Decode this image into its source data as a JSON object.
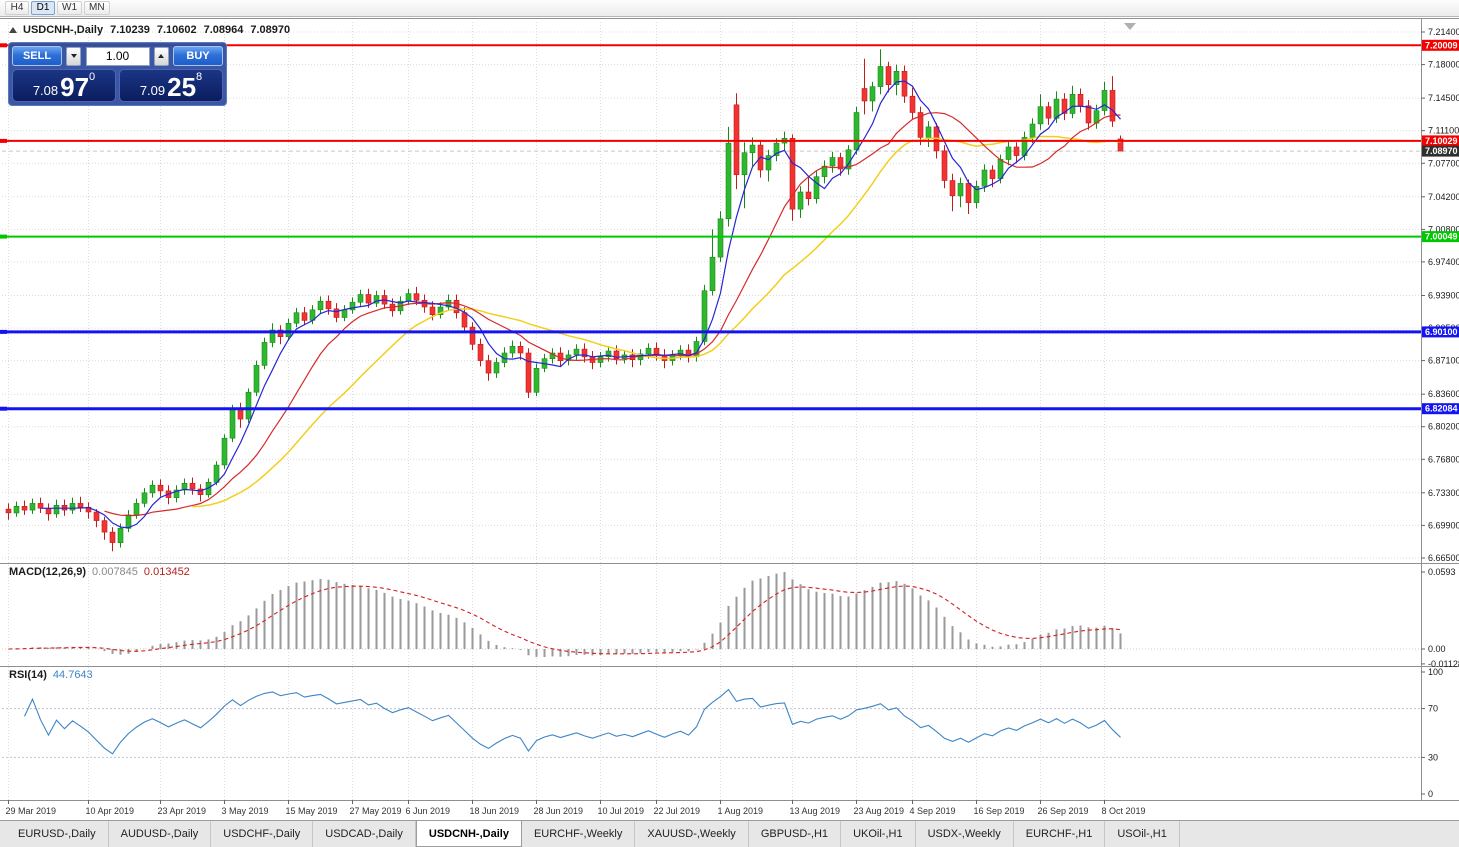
{
  "toolbar": {
    "timeframes": [
      "H4",
      "D1",
      "W1",
      "MN"
    ],
    "active": "D1"
  },
  "chart": {
    "title": {
      "symbol": "USDCNH-,Daily",
      "open": "7.10239",
      "high": "7.10602",
      "low": "7.08964",
      "close": "7.08970"
    },
    "one_click": {
      "sell_label": "SELL",
      "buy_label": "BUY",
      "volume": "1.00",
      "sell_price": {
        "base": "7.08",
        "big": "97",
        "sup": "0"
      },
      "buy_price": {
        "base": "7.09",
        "big": "25",
        "sup": "8"
      }
    }
  },
  "price_axis": {
    "ticks": [
      "7.21400",
      "7.18000",
      "7.14500",
      "7.11100",
      "7.07700",
      "7.04200",
      "7.00800",
      "6.97400",
      "6.93900",
      "6.90500",
      "6.87100",
      "6.83600",
      "6.80200",
      "6.76800",
      "6.73300",
      "6.69900",
      "6.66500"
    ]
  },
  "hlines": [
    {
      "price": 7.20009,
      "label": "7.20009",
      "color": "#f40000",
      "width": 2
    },
    {
      "price": 7.10029,
      "label": "7.10029",
      "color": "#f40000",
      "width": 2
    },
    {
      "price": 7.00049,
      "label": "7.00049",
      "color": "#00c800",
      "width": 2
    },
    {
      "price": 6.901,
      "label": "6.90100",
      "color": "#1414f0",
      "width": 3
    },
    {
      "price": 6.82084,
      "label": "6.82084",
      "color": "#1414f0",
      "width": 3
    }
  ],
  "current_price": {
    "value": 7.0897,
    "label": "7.08970",
    "badge_color": "#2f2f2f"
  },
  "macd": {
    "name": "MACD(12,26,9)",
    "fast": 12,
    "slow": 26,
    "signal": 9,
    "value_hist": "0.007845",
    "value_signal": "0.013452",
    "scale": [
      "0.0593",
      "0.00",
      "-0.01128"
    ],
    "hist_color": "#9a9a9a",
    "signal_color": "#d42020"
  },
  "rsi": {
    "name": "RSI(14)",
    "period": 14,
    "value": "44.7643",
    "scale": [
      "100",
      "70",
      "30",
      "0"
    ],
    "levels": [
      70,
      30
    ],
    "color": "#3d85c6"
  },
  "tabs": {
    "items": [
      "EURUSD-,Daily",
      "AUDUSD-,Daily",
      "USDCHF-,Daily",
      "USDCAD-,Daily",
      "USDCNH-,Daily",
      "EURCHF-,Weekly",
      "XAUUSD-,Weekly",
      "GBPUSD-,H1",
      "UKOil-,H1",
      "USDX-,Weekly",
      "EURCHF-,H1",
      "USOil-,H1"
    ],
    "active_index": 4
  },
  "chart_data": {
    "type": "candlestick",
    "symbol": "USDCNH",
    "timeframe": "Daily",
    "y_range": {
      "min": 6.665,
      "max": 7.214
    },
    "colors": {
      "bull": "#2eb82e",
      "bull_border": "#188a18",
      "bear": "#f13333",
      "bear_border": "#c41a1a"
    },
    "moving_averages": [
      {
        "period": 24,
        "color": "#f2cf1d",
        "width": 1.5
      },
      {
        "period": 13,
        "color": "#d62a2a",
        "width": 1.2
      },
      {
        "period": 5,
        "color": "#2626d4",
        "width": 1.2
      }
    ],
    "date_labels": [
      {
        "t": "29 Mar 2019",
        "i": 0
      },
      {
        "t": "10 Apr 2019",
        "i": 10
      },
      {
        "t": "23 Apr 2019",
        "i": 19
      },
      {
        "t": "3 May 2019",
        "i": 27
      },
      {
        "t": "15 May 2019",
        "i": 35
      },
      {
        "t": "27 May 2019",
        "i": 43
      },
      {
        "t": "6 Jun 2019",
        "i": 50
      },
      {
        "t": "18 Jun 2019",
        "i": 58
      },
      {
        "t": "28 Jun 2019",
        "i": 66
      },
      {
        "t": "10 Jul 2019",
        "i": 74
      },
      {
        "t": "22 Jul 2019",
        "i": 81
      },
      {
        "t": "1 Aug 2019",
        "i": 89
      },
      {
        "t": "13 Aug 2019",
        "i": 98
      },
      {
        "t": "23 Aug 2019",
        "i": 106
      },
      {
        "t": "4 Sep 2019",
        "i": 113
      },
      {
        "t": "16 Sep 2019",
        "i": 121
      },
      {
        "t": "26 Sep 2019",
        "i": 129
      },
      {
        "t": "8 Oct 2019",
        "i": 137
      }
    ],
    "candles": [
      [
        6.716,
        6.722,
        6.705,
        6.712
      ],
      [
        6.712,
        6.724,
        6.708,
        6.719
      ],
      [
        6.719,
        6.725,
        6.71,
        6.715
      ],
      [
        6.715,
        6.727,
        6.711,
        6.722
      ],
      [
        6.722,
        6.728,
        6.712,
        6.717
      ],
      [
        6.717,
        6.722,
        6.704,
        6.711
      ],
      [
        6.711,
        6.726,
        6.707,
        6.72
      ],
      [
        6.72,
        6.726,
        6.709,
        6.715
      ],
      [
        6.715,
        6.728,
        6.711,
        6.722
      ],
      [
        6.722,
        6.729,
        6.713,
        6.718
      ],
      [
        6.718,
        6.723,
        6.706,
        6.713
      ],
      [
        6.713,
        6.716,
        6.697,
        6.704
      ],
      [
        6.704,
        6.708,
        6.684,
        6.692
      ],
      [
        6.692,
        6.697,
        6.672,
        6.681
      ],
      [
        6.681,
        6.701,
        6.676,
        6.696
      ],
      [
        6.696,
        6.715,
        6.692,
        6.71
      ],
      [
        6.71,
        6.727,
        6.706,
        6.722
      ],
      [
        6.722,
        6.738,
        6.718,
        6.733
      ],
      [
        6.733,
        6.746,
        6.728,
        6.741
      ],
      [
        6.741,
        6.747,
        6.729,
        6.735
      ],
      [
        6.735,
        6.741,
        6.721,
        6.728
      ],
      [
        6.728,
        6.741,
        6.723,
        6.736
      ],
      [
        6.736,
        6.748,
        6.731,
        6.743
      ],
      [
        6.743,
        6.749,
        6.731,
        6.737
      ],
      [
        6.737,
        6.742,
        6.724,
        6.731
      ],
      [
        6.731,
        6.748,
        6.728,
        6.744
      ],
      [
        6.744,
        6.766,
        6.741,
        6.762
      ],
      [
        6.762,
        6.794,
        6.758,
        6.79
      ],
      [
        6.79,
        6.825,
        6.786,
        6.82
      ],
      [
        6.82,
        6.827,
        6.801,
        6.81
      ],
      [
        6.81,
        6.842,
        6.806,
        6.838
      ],
      [
        6.838,
        6.871,
        6.834,
        6.866
      ],
      [
        6.866,
        6.895,
        6.862,
        6.89
      ],
      [
        6.89,
        6.91,
        6.885,
        6.903
      ],
      [
        6.903,
        6.908,
        6.888,
        6.896
      ],
      [
        6.896,
        6.915,
        6.892,
        6.91
      ],
      [
        6.91,
        6.926,
        6.906,
        6.921
      ],
      [
        6.921,
        6.927,
        6.908,
        6.913
      ],
      [
        6.913,
        6.929,
        6.909,
        6.924
      ],
      [
        6.924,
        6.938,
        6.92,
        6.933
      ],
      [
        6.933,
        6.939,
        6.919,
        6.925
      ],
      [
        6.925,
        6.931,
        6.911,
        6.916
      ],
      [
        6.916,
        6.929,
        6.912,
        6.924
      ],
      [
        6.924,
        6.937,
        6.92,
        6.932
      ],
      [
        6.932,
        6.945,
        6.928,
        6.94
      ],
      [
        6.94,
        6.946,
        6.926,
        6.931
      ],
      [
        6.931,
        6.944,
        6.927,
        6.939
      ],
      [
        6.939,
        6.945,
        6.925,
        6.93
      ],
      [
        6.93,
        6.936,
        6.917,
        6.923
      ],
      [
        6.923,
        6.938,
        6.919,
        6.933
      ],
      [
        6.933,
        6.946,
        6.929,
        6.941
      ],
      [
        6.941,
        6.948,
        6.929,
        6.934
      ],
      [
        6.934,
        6.94,
        6.921,
        6.927
      ],
      [
        6.927,
        6.933,
        6.913,
        6.919
      ],
      [
        6.919,
        6.932,
        6.915,
        6.927
      ],
      [
        6.927,
        6.94,
        6.923,
        6.934
      ],
      [
        6.934,
        6.94,
        6.915,
        6.921
      ],
      [
        6.921,
        6.927,
        6.9,
        6.906
      ],
      [
        6.906,
        6.911,
        6.882,
        6.888
      ],
      [
        6.888,
        6.894,
        6.865,
        6.871
      ],
      [
        6.871,
        6.877,
        6.85,
        6.858
      ],
      [
        6.858,
        6.874,
        6.853,
        6.869
      ],
      [
        6.869,
        6.885,
        6.864,
        6.879
      ],
      [
        6.879,
        6.892,
        6.874,
        6.886
      ],
      [
        6.886,
        6.891,
        6.872,
        6.879
      ],
      [
        6.879,
        6.884,
        6.832,
        6.838
      ],
      [
        6.838,
        6.868,
        6.834,
        6.863
      ],
      [
        6.863,
        6.878,
        6.859,
        6.873
      ],
      [
        6.873,
        6.884,
        6.868,
        6.879
      ],
      [
        6.879,
        6.885,
        6.865,
        6.871
      ],
      [
        6.871,
        6.882,
        6.866,
        6.877
      ],
      [
        6.877,
        6.888,
        6.872,
        6.883
      ],
      [
        6.883,
        6.889,
        6.869,
        6.875
      ],
      [
        6.875,
        6.881,
        6.862,
        6.869
      ],
      [
        6.869,
        6.88,
        6.864,
        6.875
      ],
      [
        6.875,
        6.886,
        6.87,
        6.881
      ],
      [
        6.881,
        6.887,
        6.867,
        6.873
      ],
      [
        6.873,
        6.882,
        6.868,
        6.877
      ],
      [
        6.877,
        6.883,
        6.864,
        6.872
      ],
      [
        6.872,
        6.883,
        6.866,
        6.878
      ],
      [
        6.878,
        6.889,
        6.873,
        6.884
      ],
      [
        6.884,
        6.89,
        6.871,
        6.877
      ],
      [
        6.877,
        6.883,
        6.863,
        6.871
      ],
      [
        6.871,
        6.882,
        6.866,
        6.877
      ],
      [
        6.877,
        6.887,
        6.872,
        6.882
      ],
      [
        6.882,
        6.888,
        6.869,
        6.875
      ],
      [
        6.875,
        6.896,
        6.87,
        6.891
      ],
      [
        6.891,
        6.95,
        6.887,
        6.944
      ],
      [
        6.944,
        7.008,
        6.939,
        6.979
      ],
      [
        6.979,
        7.027,
        6.974,
        7.019
      ],
      [
        7.019,
        7.115,
        7.011,
        7.098
      ],
      [
        7.138,
        7.15,
        7.05,
        7.065
      ],
      [
        7.065,
        7.099,
        7.03,
        7.088
      ],
      [
        7.088,
        7.104,
        7.074,
        7.096
      ],
      [
        7.096,
        7.101,
        7.062,
        7.07
      ],
      [
        7.07,
        7.091,
        7.058,
        7.085
      ],
      [
        7.085,
        7.103,
        7.079,
        7.098
      ],
      [
        7.098,
        7.11,
        7.09,
        7.103
      ],
      [
        7.103,
        7.107,
        7.017,
        7.029
      ],
      [
        7.029,
        7.053,
        7.02,
        7.047
      ],
      [
        7.047,
        7.062,
        7.033,
        7.04
      ],
      [
        7.04,
        7.069,
        7.035,
        7.063
      ],
      [
        7.063,
        7.08,
        7.056,
        7.074
      ],
      [
        7.074,
        7.089,
        7.067,
        7.083
      ],
      [
        7.083,
        7.088,
        7.064,
        7.071
      ],
      [
        7.071,
        7.096,
        7.065,
        7.091
      ],
      [
        7.091,
        7.136,
        7.086,
        7.13
      ],
      [
        7.155,
        7.186,
        7.128,
        7.142
      ],
      [
        7.142,
        7.162,
        7.131,
        7.157
      ],
      [
        7.157,
        7.196,
        7.149,
        7.178
      ],
      [
        7.178,
        7.183,
        7.151,
        7.159
      ],
      [
        7.159,
        7.18,
        7.148,
        7.173
      ],
      [
        7.173,
        7.179,
        7.14,
        7.147
      ],
      [
        7.147,
        7.156,
        7.123,
        7.13
      ],
      [
        7.13,
        7.136,
        7.096,
        7.104
      ],
      [
        7.104,
        7.121,
        7.094,
        7.115
      ],
      [
        7.115,
        7.119,
        7.082,
        7.09
      ],
      [
        7.09,
        7.096,
        7.051,
        7.059
      ],
      [
        7.059,
        7.066,
        7.027,
        7.043
      ],
      [
        7.043,
        7.062,
        7.031,
        7.056
      ],
      [
        7.056,
        7.06,
        7.024,
        7.036
      ],
      [
        7.036,
        7.059,
        7.03,
        7.053
      ],
      [
        7.053,
        7.076,
        7.047,
        7.07
      ],
      [
        7.07,
        7.075,
        7.052,
        7.061
      ],
      [
        7.061,
        7.086,
        7.056,
        7.081
      ],
      [
        7.081,
        7.1,
        7.075,
        7.094
      ],
      [
        7.094,
        7.099,
        7.077,
        7.085
      ],
      [
        7.085,
        7.11,
        7.08,
        7.104
      ],
      [
        7.104,
        7.124,
        7.098,
        7.118
      ],
      [
        7.118,
        7.149,
        7.112,
        7.136
      ],
      [
        7.136,
        7.141,
        7.117,
        7.124
      ],
      [
        7.124,
        7.152,
        7.119,
        7.144
      ],
      [
        7.144,
        7.15,
        7.122,
        7.129
      ],
      [
        7.129,
        7.158,
        7.124,
        7.149
      ],
      [
        7.149,
        7.155,
        7.13,
        7.137
      ],
      [
        7.137,
        7.143,
        7.112,
        7.119
      ],
      [
        7.119,
        7.138,
        7.113,
        7.132
      ],
      [
        7.132,
        7.162,
        7.127,
        7.153
      ],
      [
        7.153,
        7.168,
        7.115,
        7.121
      ],
      [
        7.10239,
        7.10602,
        7.08964,
        7.0897
      ]
    ]
  }
}
